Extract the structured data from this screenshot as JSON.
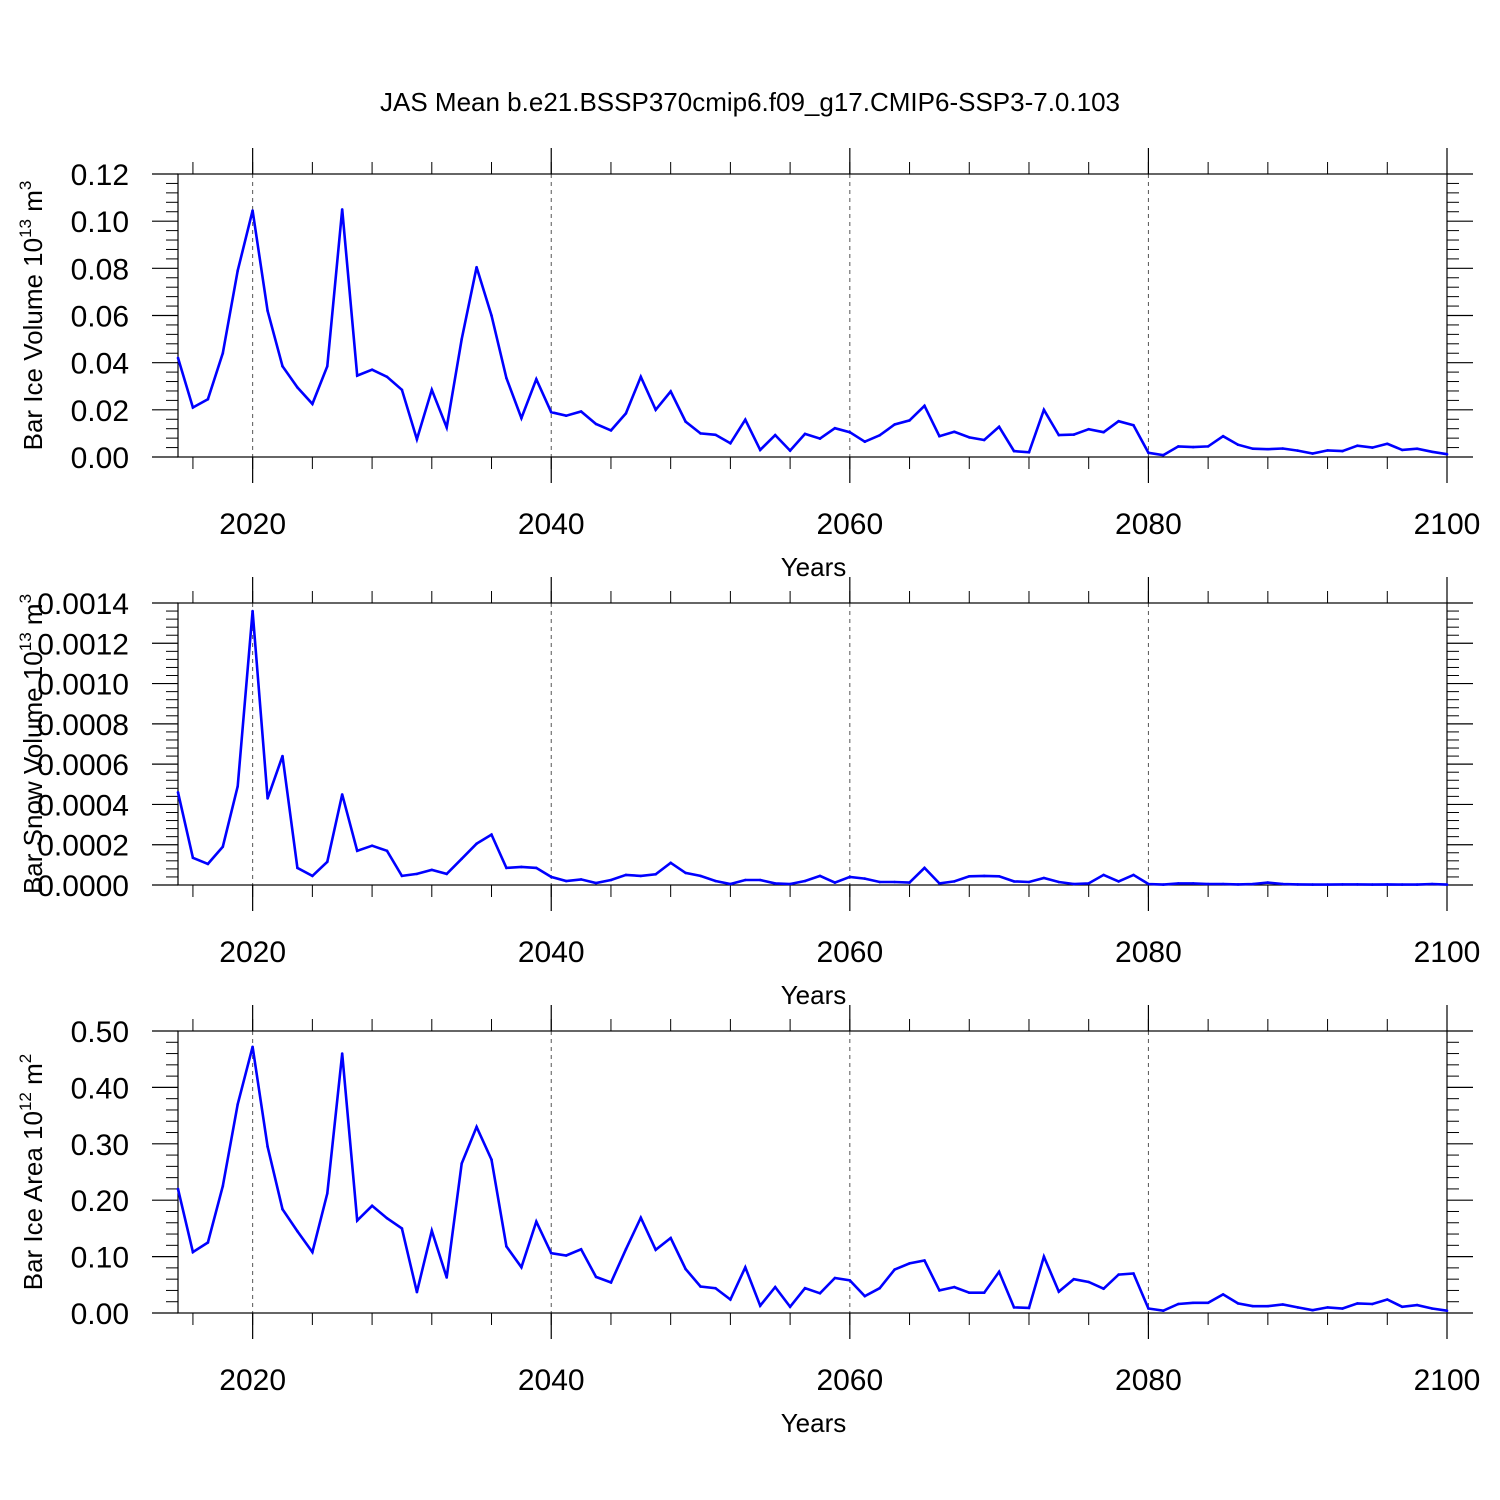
{
  "title": "JAS Mean b.e21.BSSP370cmip6.f09_g17.CMIP6-SSP3-7.0.103",
  "line_color": "#0000ff",
  "chart_data": [
    {
      "type": "line",
      "xlabel": "Years",
      "ylabel_text": "Bar Ice Volume 10",
      "ylabel_exp": "13",
      "ylabel_unit": " m",
      "ylabel_unit_exp": "3",
      "xlim": [
        2015,
        2100
      ],
      "ylim": [
        0,
        0.12
      ],
      "xticks": [
        "2020",
        "2040",
        "2060",
        "2080",
        "2100"
      ],
      "yticks": [
        "0.00",
        "0.02",
        "0.04",
        "0.06",
        "0.08",
        "0.10",
        "0.12"
      ],
      "grid": "vertical dashed at major x ticks",
      "series": [
        {
          "x": [
            2015,
            2016,
            2017,
            2018,
            2019,
            2020,
            2021,
            2022,
            2023,
            2024,
            2025,
            2026,
            2027,
            2028,
            2029,
            2030,
            2031,
            2032,
            2033,
            2034,
            2035,
            2036,
            2037,
            2038,
            2039,
            2040,
            2041,
            2042,
            2043,
            2044,
            2045,
            2046,
            2047,
            2048,
            2049,
            2050,
            2051,
            2052,
            2053,
            2054,
            2055,
            2056,
            2057,
            2058,
            2059,
            2060,
            2061,
            2062,
            2063,
            2064,
            2065,
            2066,
            2067,
            2068,
            2069,
            2070,
            2071,
            2072,
            2073,
            2074,
            2075,
            2076,
            2077,
            2078,
            2079,
            2080,
            2081,
            2082,
            2083,
            2084,
            2085,
            2086,
            2087,
            2088,
            2089,
            2090,
            2091,
            2092,
            2093,
            2094,
            2095,
            2096,
            2097,
            2098,
            2099,
            2100
          ],
          "values": [
            0.042,
            0.021,
            0.0245,
            0.044,
            0.079,
            0.1045,
            0.062,
            0.0385,
            0.0295,
            0.0225,
            0.0385,
            0.105,
            0.0345,
            0.037,
            0.034,
            0.0285,
            0.0075,
            0.0285,
            0.0125,
            0.05,
            0.0805,
            0.06,
            0.0335,
            0.0165,
            0.033,
            0.019,
            0.0175,
            0.0193,
            0.014,
            0.0113,
            0.0185,
            0.034,
            0.02,
            0.0278,
            0.015,
            0.01,
            0.0094,
            0.0058,
            0.0158,
            0.003,
            0.0093,
            0.0027,
            0.0098,
            0.0078,
            0.0122,
            0.0105,
            0.0065,
            0.0092,
            0.0138,
            0.0155,
            0.0217,
            0.0088,
            0.0107,
            0.0083,
            0.0072,
            0.0128,
            0.0025,
            0.002,
            0.02,
            0.0093,
            0.0095,
            0.0118,
            0.0105,
            0.0152,
            0.0135,
            0.0018,
            0.0008,
            0.0045,
            0.0042,
            0.0045,
            0.0088,
            0.0052,
            0.0035,
            0.0033,
            0.0036,
            0.0027,
            0.0015,
            0.0028,
            0.0025,
            0.0048,
            0.004,
            0.0056,
            0.003,
            0.0035,
            0.0022,
            0.0012
          ]
        }
      ]
    },
    {
      "type": "line",
      "xlabel": "Years",
      "ylabel_text": "Bar Snow Volume 10",
      "ylabel_exp": "13",
      "ylabel_unit": " m",
      "ylabel_unit_exp": "3",
      "xlim": [
        2015,
        2100
      ],
      "ylim": [
        0,
        0.0014
      ],
      "xticks": [
        "2020",
        "2040",
        "2060",
        "2080",
        "2100"
      ],
      "yticks": [
        "0.0000",
        "0.0002",
        "0.0004",
        "0.0006",
        "0.0008",
        "0.0010",
        "0.0012",
        "0.0014"
      ],
      "grid": "vertical dashed at major x ticks",
      "series": [
        {
          "x": [
            2015,
            2016,
            2017,
            2018,
            2019,
            2020,
            2021,
            2022,
            2023,
            2024,
            2025,
            2026,
            2027,
            2028,
            2029,
            2030,
            2031,
            2032,
            2033,
            2034,
            2035,
            2036,
            2037,
            2038,
            2039,
            2040,
            2041,
            2042,
            2043,
            2044,
            2045,
            2046,
            2047,
            2048,
            2049,
            2050,
            2051,
            2052,
            2053,
            2054,
            2055,
            2056,
            2057,
            2058,
            2059,
            2060,
            2061,
            2062,
            2063,
            2064,
            2065,
            2066,
            2067,
            2068,
            2069,
            2070,
            2071,
            2072,
            2073,
            2074,
            2075,
            2076,
            2077,
            2078,
            2079,
            2080,
            2081,
            2082,
            2083,
            2084,
            2085,
            2086,
            2087,
            2088,
            2089,
            2090,
            2091,
            2092,
            2093,
            2094,
            2095,
            2096,
            2097,
            2098,
            2099,
            2100
          ],
          "values": [
            0.00046,
            0.000135,
            0.000105,
            0.00019,
            0.00049,
            0.00136,
            0.00043,
            0.00064,
            8.5e-05,
            4.5e-05,
            0.000115,
            0.00045,
            0.00017,
            0.000195,
            0.00017,
            4.5e-05,
            5.5e-05,
            7.5e-05,
            5.5e-05,
            0.00013,
            0.000205,
            0.00025,
            8.5e-05,
            9e-05,
            8.5e-05,
            4e-05,
            2e-05,
            2.8e-05,
            1e-05,
            2.5e-05,
            5e-05,
            4.5e-05,
            5.3e-05,
            0.00011,
            6e-05,
            4.5e-05,
            2e-05,
            5e-06,
            2.5e-05,
            2.5e-05,
            8e-06,
            5e-06,
            2e-05,
            4.5e-05,
            1.2e-05,
            4e-05,
            3.2e-05,
            1.5e-05,
            1.5e-05,
            1.2e-05,
            8.5e-05,
            8e-06,
            1.8e-05,
            4.3e-05,
            4.5e-05,
            4.3e-05,
            1.8e-05,
            1.5e-05,
            3.5e-05,
            1.5e-05,
            5e-06,
            8e-06,
            5e-05,
            1.8e-05,
            5e-05,
            5e-06,
            2e-06,
            8e-06,
            8e-06,
            5e-06,
            5e-06,
            3e-06,
            5e-06,
            1.2e-05,
            5e-06,
            3e-06,
            2e-06,
            2e-06,
            3e-06,
            3e-06,
            2e-06,
            3e-06,
            2e-06,
            2e-06,
            5e-06,
            2e-06
          ]
        }
      ]
    },
    {
      "type": "line",
      "xlabel": "Years",
      "ylabel_text": "Bar Ice Area 10",
      "ylabel_exp": "12",
      "ylabel_unit": " m",
      "ylabel_unit_exp": "2",
      "xlim": [
        2015,
        2100
      ],
      "ylim": [
        0,
        0.5
      ],
      "xticks": [
        "2020",
        "2040",
        "2060",
        "2080",
        "2100"
      ],
      "yticks": [
        "0.00",
        "0.10",
        "0.20",
        "0.30",
        "0.40",
        "0.50"
      ],
      "grid": "vertical dashed at major x ticks",
      "series": [
        {
          "x": [
            2015,
            2016,
            2017,
            2018,
            2019,
            2020,
            2021,
            2022,
            2023,
            2024,
            2025,
            2026,
            2027,
            2028,
            2029,
            2030,
            2031,
            2032,
            2033,
            2034,
            2035,
            2036,
            2037,
            2038,
            2039,
            2040,
            2041,
            2042,
            2043,
            2044,
            2045,
            2046,
            2047,
            2048,
            2049,
            2050,
            2051,
            2052,
            2053,
            2054,
            2055,
            2056,
            2057,
            2058,
            2059,
            2060,
            2061,
            2062,
            2063,
            2064,
            2065,
            2066,
            2067,
            2068,
            2069,
            2070,
            2071,
            2072,
            2073,
            2074,
            2075,
            2076,
            2077,
            2078,
            2079,
            2080,
            2081,
            2082,
            2083,
            2084,
            2085,
            2086,
            2087,
            2088,
            2089,
            2090,
            2091,
            2092,
            2093,
            2094,
            2095,
            2096,
            2097,
            2098,
            2099,
            2100
          ],
          "values": [
            0.22,
            0.108,
            0.125,
            0.225,
            0.37,
            0.472,
            0.295,
            0.184,
            0.145,
            0.108,
            0.212,
            0.46,
            0.164,
            0.19,
            0.168,
            0.15,
            0.037,
            0.146,
            0.063,
            0.265,
            0.33,
            0.272,
            0.118,
            0.081,
            0.162,
            0.106,
            0.102,
            0.113,
            0.064,
            0.054,
            0.113,
            0.169,
            0.112,
            0.133,
            0.078,
            0.047,
            0.044,
            0.024,
            0.081,
            0.013,
            0.046,
            0.011,
            0.044,
            0.035,
            0.062,
            0.058,
            0.03,
            0.044,
            0.077,
            0.088,
            0.093,
            0.04,
            0.046,
            0.036,
            0.036,
            0.073,
            0.01,
            0.009,
            0.1,
            0.038,
            0.06,
            0.055,
            0.043,
            0.068,
            0.07,
            0.008,
            0.004,
            0.016,
            0.018,
            0.018,
            0.033,
            0.017,
            0.012,
            0.012,
            0.015,
            0.01,
            0.005,
            0.01,
            0.008,
            0.017,
            0.016,
            0.024,
            0.011,
            0.014,
            0.008,
            0.004
          ]
        }
      ]
    }
  ]
}
